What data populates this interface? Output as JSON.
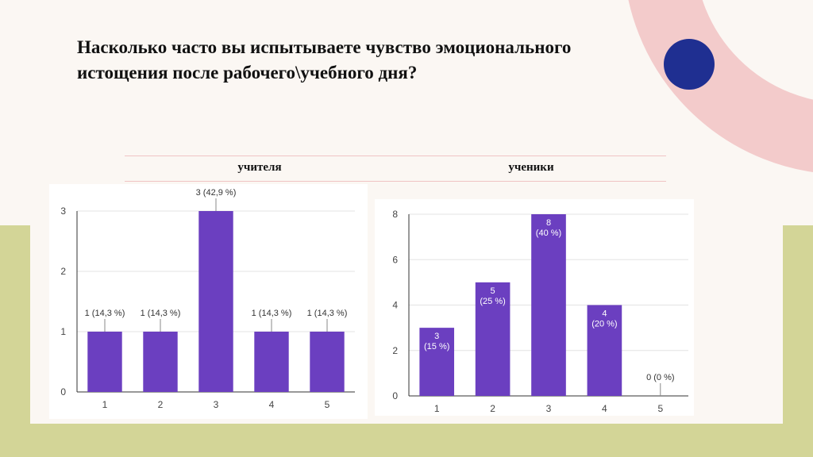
{
  "slide": {
    "title": "Насколько часто вы испытываете чувство эмоционального истощения после рабочего\\учебного дня?",
    "columns": [
      "учителя",
      "ученики"
    ]
  },
  "colors": {
    "bar": "#6b3fc0",
    "olive_band": "#d3d597",
    "pink_ring": "#f3cbcb",
    "blue_dot": "#1f2f91",
    "background": "#fbf7f3"
  },
  "chart_data": [
    {
      "type": "bar",
      "group": "учителя",
      "categories": [
        "1",
        "2",
        "3",
        "4",
        "5"
      ],
      "values": [
        1,
        1,
        3,
        1,
        1
      ],
      "data_labels": [
        "1 (14,3 %)",
        "1 (14,3 %)",
        "3 (42,9 %)",
        "1 (14,3 %)",
        "1 (14,3 %)"
      ],
      "yticks": [
        0,
        1,
        2,
        3
      ],
      "ylim": [
        0,
        3
      ],
      "grid": true
    },
    {
      "type": "bar",
      "group": "ученики",
      "categories": [
        "1",
        "2",
        "3",
        "4",
        "5"
      ],
      "values": [
        3,
        5,
        8,
        4,
        0
      ],
      "data_labels": [
        [
          "3",
          "(15 %)"
        ],
        [
          "5",
          "(25 %)"
        ],
        [
          "8",
          "(40 %)"
        ],
        [
          "4",
          "(20 %)"
        ],
        [
          "0 (0 %)"
        ]
      ],
      "yticks": [
        0,
        2,
        4,
        6,
        8
      ],
      "ylim": [
        0,
        8
      ],
      "grid": true
    }
  ]
}
